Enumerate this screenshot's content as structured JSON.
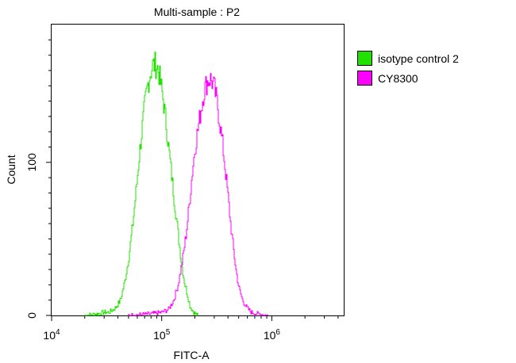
{
  "chart_data": {
    "type": "histogram",
    "title": "Multi-sample : P2",
    "xlabel": "FITC-A",
    "ylabel": "Count",
    "x_scale": "log",
    "xlim": [
      10000,
      4500000
    ],
    "ylim": [
      0,
      190
    ],
    "x_ticks": [
      {
        "value": 10000,
        "base": "10",
        "exp": "4"
      },
      {
        "value": 100000,
        "base": "10",
        "exp": "5"
      },
      {
        "value": 1000000,
        "base": "10",
        "exp": "6"
      }
    ],
    "y_ticks": [
      {
        "value": 0,
        "label": "0"
      },
      {
        "value": 100,
        "label": "100"
      }
    ],
    "legend_position": "right",
    "series": [
      {
        "name": "isotype control 2",
        "color": "#22e000",
        "points": [
          [
            20000,
            0
          ],
          [
            26000,
            1
          ],
          [
            30000,
            2
          ],
          [
            33000,
            2
          ],
          [
            38000,
            5
          ],
          [
            42000,
            10
          ],
          [
            46000,
            22
          ],
          [
            50000,
            38
          ],
          [
            54000,
            58
          ],
          [
            58000,
            80
          ],
          [
            62000,
            103
          ],
          [
            66000,
            122
          ],
          [
            70000,
            138
          ],
          [
            74000,
            150
          ],
          [
            78000,
            158
          ],
          [
            82000,
            163
          ],
          [
            86000,
            164
          ],
          [
            90000,
            163
          ],
          [
            94000,
            158
          ],
          [
            98000,
            150
          ],
          [
            103000,
            140
          ],
          [
            108000,
            128
          ],
          [
            113000,
            115
          ],
          [
            118000,
            102
          ],
          [
            124000,
            88
          ],
          [
            130000,
            74
          ],
          [
            137000,
            60
          ],
          [
            144000,
            46
          ],
          [
            152000,
            32
          ],
          [
            160000,
            22
          ],
          [
            170000,
            14
          ],
          [
            180000,
            6
          ],
          [
            195000,
            2
          ],
          [
            210000,
            0
          ]
        ]
      },
      {
        "name": "CY8300",
        "color": "#ff00ff",
        "points": [
          [
            50000,
            0
          ],
          [
            80000,
            1
          ],
          [
            100000,
            2
          ],
          [
            115000,
            4
          ],
          [
            128000,
            10
          ],
          [
            140000,
            20
          ],
          [
            152000,
            34
          ],
          [
            165000,
            52
          ],
          [
            178000,
            74
          ],
          [
            190000,
            96
          ],
          [
            202000,
            112
          ],
          [
            215000,
            124
          ],
          [
            228000,
            136
          ],
          [
            240000,
            146
          ],
          [
            255000,
            152
          ],
          [
            270000,
            155
          ],
          [
            285000,
            153
          ],
          [
            300000,
            148
          ],
          [
            318000,
            138
          ],
          [
            335000,
            126
          ],
          [
            355000,
            112
          ],
          [
            375000,
            96
          ],
          [
            398000,
            78
          ],
          [
            420000,
            60
          ],
          [
            445000,
            44
          ],
          [
            470000,
            30
          ],
          [
            500000,
            18
          ],
          [
            540000,
            10
          ],
          [
            590000,
            5
          ],
          [
            650000,
            2
          ],
          [
            750000,
            1
          ],
          [
            900000,
            0
          ]
        ]
      }
    ]
  }
}
